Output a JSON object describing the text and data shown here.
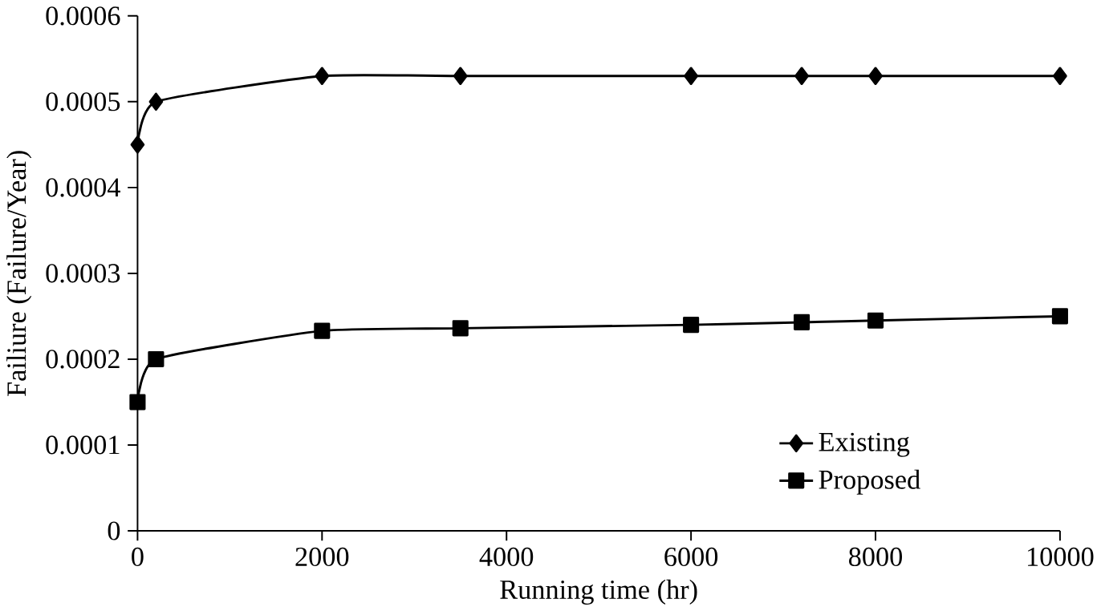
{
  "chart_data": {
    "type": "line",
    "xlabel": "Running time (hr)",
    "ylabel": "Failiure (Failure/Year)",
    "x": [
      0,
      200,
      2000,
      3500,
      6000,
      7200,
      8000,
      10000
    ],
    "series": [
      {
        "name": "Existing",
        "color": "#000000",
        "marker": "diamond",
        "values": [
          0.00045,
          0.0005,
          0.00053,
          0.00053,
          0.00053,
          0.00053,
          0.00053,
          0.00053
        ]
      },
      {
        "name": "Proposed",
        "color": "#000000",
        "marker": "square",
        "values": [
          0.00015,
          0.0002,
          0.000233,
          0.000236,
          0.00024,
          0.000243,
          0.000245,
          0.00025
        ]
      }
    ],
    "xlim": [
      0,
      10000
    ],
    "xticks": [
      0,
      2000,
      4000,
      6000,
      8000,
      10000
    ],
    "ylim": [
      0,
      0.0006
    ],
    "yticks": [
      0,
      0.0001,
      0.0002,
      0.0003,
      0.0004,
      0.0005,
      0.0006
    ],
    "grid": false,
    "legend": "bottom right",
    "line_style": "solid"
  }
}
